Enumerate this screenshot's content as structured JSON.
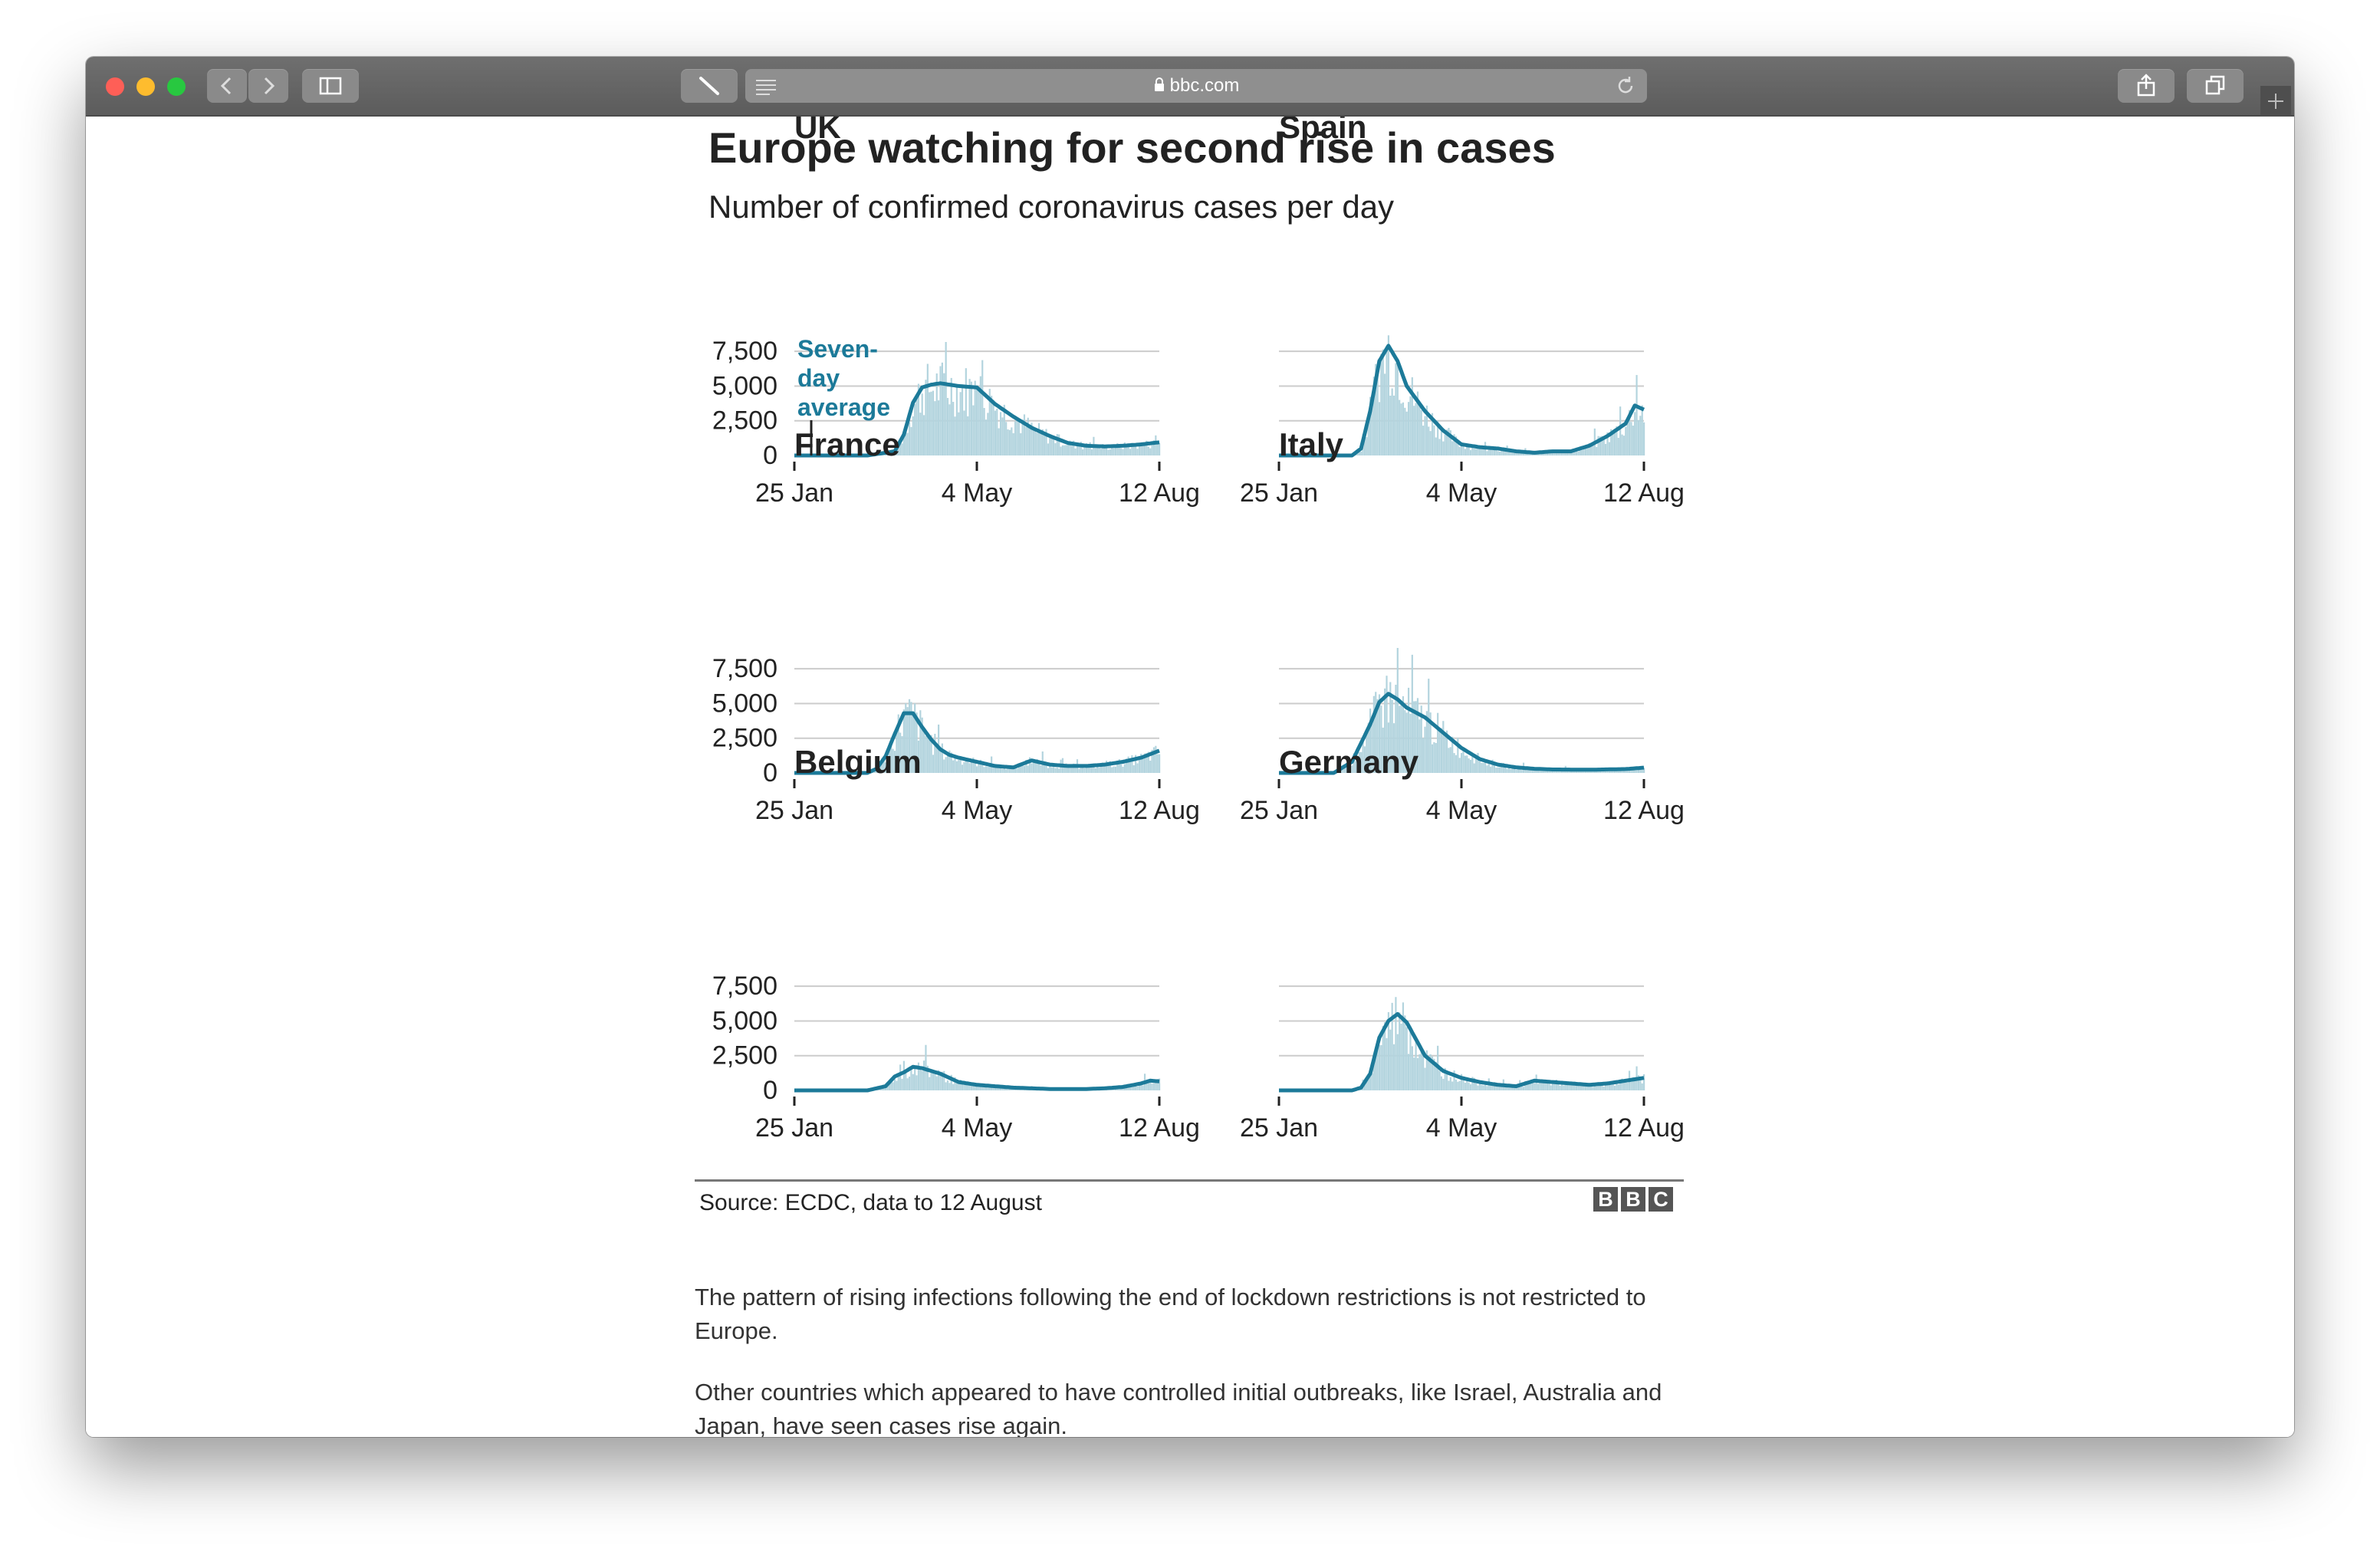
{
  "browser": {
    "url": "bbc.com",
    "colors": {
      "close": "#fe5f57",
      "minimize": "#febc2e",
      "maximize": "#28c840"
    },
    "icons": [
      "back-icon",
      "forward-icon",
      "sidebar-icon",
      "pen-icon",
      "reader-icon",
      "lock-icon",
      "reload-icon",
      "share-icon",
      "tabs-icon",
      "new-tab-icon"
    ]
  },
  "article": {
    "headline": "Europe watching for second rise in cases",
    "subheadline": "Number of confirmed coronavirus cases per day",
    "source": "Source: ECDC, data to 12 August",
    "logo_letters": [
      "B",
      "B",
      "C"
    ],
    "paragraphs": [
      "The pattern of rising infections following the end of lockdown restrictions is not restricted to Europe.",
      "Other countries which appeared to have controlled initial outbreaks, like Israel, Australia and Japan, have seen cases rise again."
    ]
  },
  "chart_data": {
    "type": "bar",
    "colors": {
      "line": "#1c7a99",
      "bars": "#b3d4de",
      "grid": "#cccccc",
      "axis": "#222222"
    },
    "annotation": {
      "chart": "UK",
      "text": [
        "Seven-",
        "day",
        "average"
      ]
    },
    "y_ticks": [
      "7,500",
      "5,000",
      "2,500",
      "0"
    ],
    "y_tick_values": [
      7500,
      5000,
      2500,
      0
    ],
    "x_ticks": [
      "25 Jan",
      "4 May",
      "12 Aug"
    ],
    "x_tick_days": [
      0,
      100,
      200
    ],
    "ylim": [
      0,
      9000
    ],
    "xlim_days": [
      0,
      200
    ],
    "series_notes": "Daily confirmed cases (bars) with seven-day average (line); line values sampled at day offsets from 25 Jan.",
    "panels": [
      {
        "name": "UK",
        "x": [
          0,
          40,
          55,
          60,
          65,
          70,
          75,
          80,
          90,
          100,
          110,
          120,
          130,
          140,
          150,
          160,
          170,
          180,
          190,
          200
        ],
        "avg": [
          0,
          0,
          300,
          1500,
          3800,
          4900,
          5100,
          5200,
          5000,
          4900,
          3700,
          2800,
          2000,
          1400,
          900,
          700,
          650,
          700,
          800,
          950
        ]
      },
      {
        "name": "Spain",
        "x": [
          0,
          40,
          45,
          50,
          55,
          60,
          65,
          70,
          80,
          90,
          100,
          110,
          120,
          130,
          140,
          150,
          160,
          170,
          180,
          190,
          195,
          200
        ],
        "avg": [
          0,
          0,
          500,
          3200,
          6800,
          7900,
          6800,
          5000,
          3200,
          1800,
          800,
          600,
          500,
          300,
          200,
          300,
          300,
          700,
          1400,
          2300,
          3600,
          3300
        ]
      },
      {
        "name": "France",
        "x": [
          0,
          40,
          45,
          50,
          55,
          60,
          65,
          70,
          75,
          80,
          85,
          90,
          100,
          110,
          120,
          130,
          140,
          150,
          160,
          170,
          180,
          190,
          200
        ],
        "avg": [
          0,
          0,
          300,
          1200,
          2800,
          4300,
          4300,
          3300,
          2400,
          1700,
          1300,
          1100,
          800,
          500,
          400,
          900,
          600,
          500,
          500,
          600,
          800,
          1100,
          1600
        ]
      },
      {
        "name": "Italy",
        "x": [
          0,
          30,
          40,
          50,
          55,
          60,
          65,
          70,
          80,
          90,
          100,
          110,
          120,
          130,
          140,
          150,
          170,
          190,
          200
        ],
        "avg": [
          0,
          0,
          800,
          3500,
          5100,
          5700,
          5300,
          4700,
          4000,
          2900,
          1800,
          1000,
          600,
          400,
          300,
          250,
          230,
          280,
          380
        ]
      },
      {
        "name": "Belgium",
        "x": [
          0,
          40,
          50,
          55,
          60,
          65,
          70,
          80,
          90,
          100,
          120,
          140,
          160,
          170,
          180,
          190,
          195,
          200
        ],
        "avg": [
          0,
          0,
          300,
          1000,
          1300,
          1700,
          1600,
          1200,
          600,
          400,
          200,
          100,
          100,
          150,
          250,
          500,
          700,
          650
        ]
      },
      {
        "name": "Germany",
        "x": [
          0,
          40,
          45,
          50,
          55,
          60,
          65,
          70,
          80,
          90,
          100,
          110,
          120,
          130,
          140,
          150,
          160,
          170,
          180,
          190,
          200
        ],
        "avg": [
          0,
          0,
          200,
          1200,
          3800,
          5000,
          5500,
          4900,
          2500,
          1400,
          900,
          600,
          400,
          300,
          700,
          600,
          500,
          400,
          500,
          700,
          900
        ]
      }
    ]
  }
}
